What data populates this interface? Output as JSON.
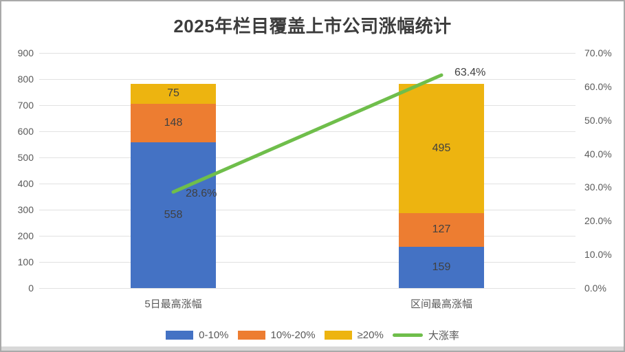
{
  "chart_data": {
    "type": "bar",
    "stacked": true,
    "title": "2025年栏目覆盖上市公司涨幅统计",
    "categories": [
      "5日最高涨幅",
      "区间最高涨幅"
    ],
    "series": [
      {
        "name": "0-10%",
        "values": [
          558,
          159
        ],
        "color": "#4472C4"
      },
      {
        "name": "10%-20%",
        "values": [
          148,
          127
        ],
        "color": "#ED7D31"
      },
      {
        "name": "≥20%",
        "values": [
          75,
          495
        ],
        "color": "#EDB410"
      }
    ],
    "line_series": {
      "name": "大涨率",
      "axis": "right",
      "values_pct": [
        28.6,
        63.4
      ],
      "labels": [
        "28.6%",
        "63.4%"
      ],
      "color": "#6FBE4B"
    },
    "left_axis": {
      "min": 0,
      "max": 900,
      "tick_step": 100,
      "tick_labels": [
        "0",
        "100",
        "200",
        "300",
        "400",
        "500",
        "600",
        "700",
        "800",
        "900"
      ]
    },
    "right_axis": {
      "min": 0,
      "max": 70,
      "tick_step": 10,
      "tick_labels": [
        "0.0%",
        "10.0%",
        "20.0%",
        "30.0%",
        "40.0%",
        "50.0%",
        "60.0%",
        "70.0%"
      ]
    },
    "grid": true,
    "grid_color": "#e1e1e1",
    "legend_position": "bottom",
    "text_colors": {
      "axis": "#595959",
      "data_label": "#404040",
      "title": "#3d3d3d"
    }
  }
}
